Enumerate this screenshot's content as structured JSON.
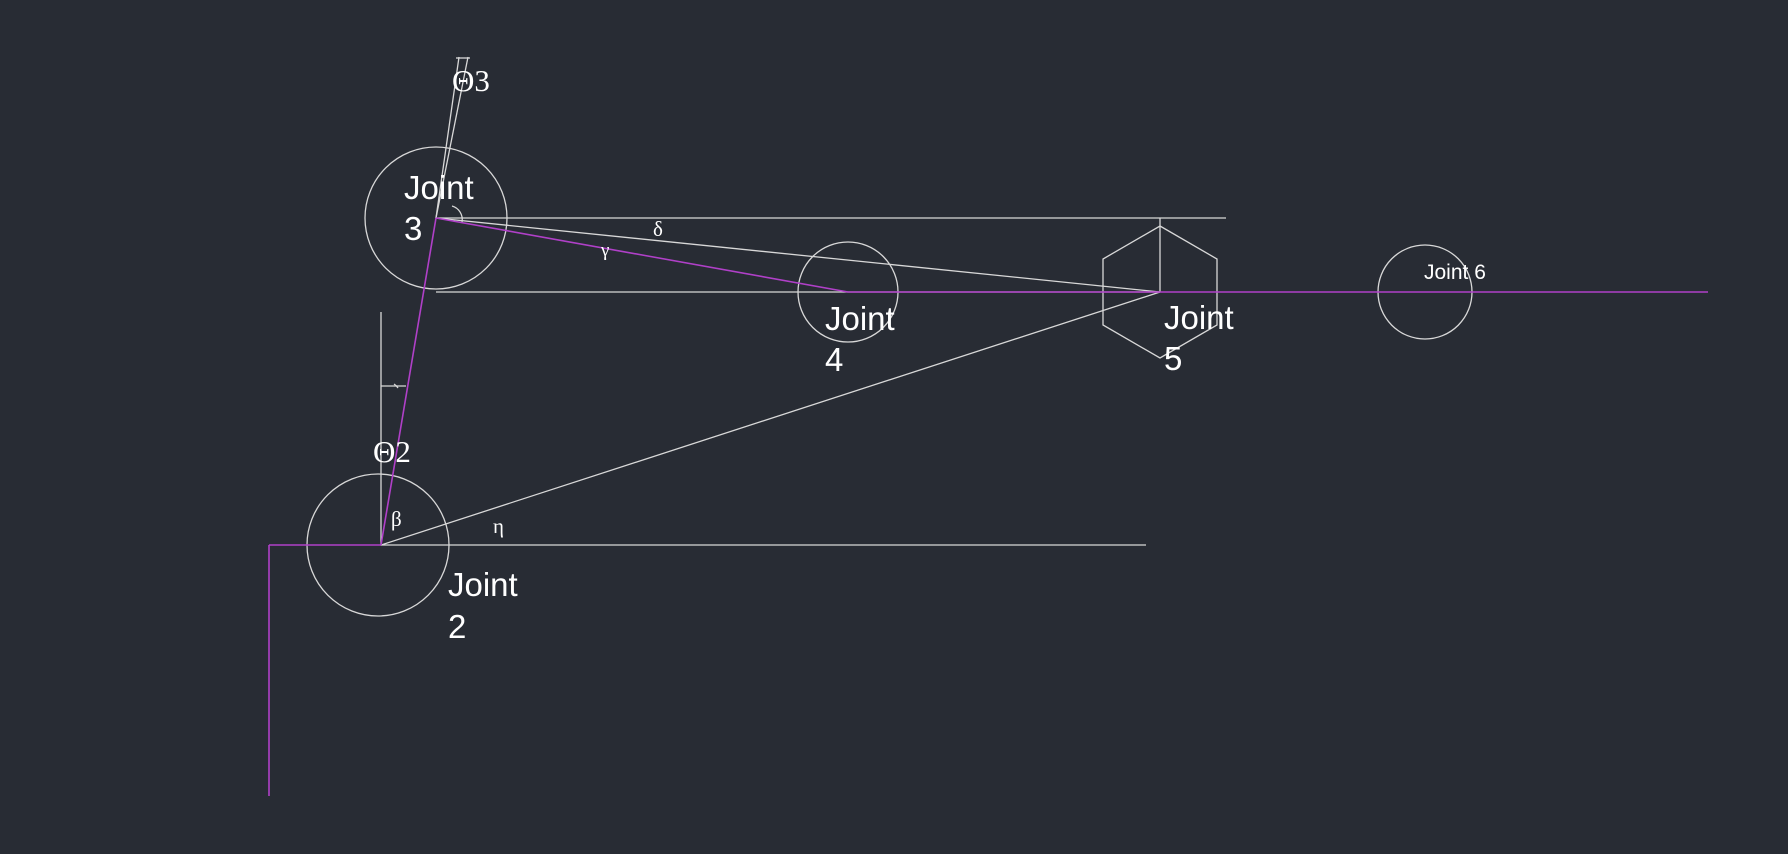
{
  "colors": {
    "background": "#282c34",
    "line": "#d8d8d8",
    "link": "#b040c8",
    "text": "#ffffff"
  },
  "joints": {
    "joint2": {
      "line1": "Joint",
      "line2": "2"
    },
    "joint3": {
      "line1": "Joint",
      "line2": "3"
    },
    "joint4": {
      "line1": "Joint",
      "line2": "4"
    },
    "joint5": {
      "line1": "Joint",
      "line2": "5"
    },
    "joint6": {
      "label": "Joint 6"
    }
  },
  "angles": {
    "theta2": "Θ2",
    "theta3": "Θ3",
    "beta": "β",
    "eta": "η",
    "gamma": "γ",
    "delta": "δ"
  }
}
